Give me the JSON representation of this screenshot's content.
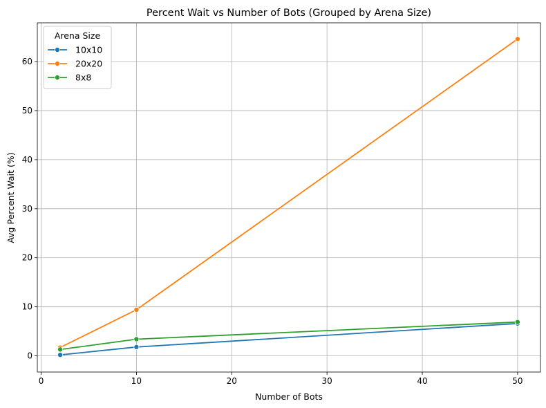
{
  "chart_data": {
    "type": "line",
    "title": "Percent Wait vs Number of Bots (Grouped by Arena Size)",
    "xlabel": "Number of Bots",
    "ylabel": "Avg Percent Wait (%)",
    "xlim": [
      -0.4,
      52.4
    ],
    "ylim": [
      -3.3,
      67.9
    ],
    "xticks": [
      0,
      10,
      20,
      30,
      40,
      50
    ],
    "yticks": [
      0,
      10,
      20,
      30,
      40,
      50,
      60
    ],
    "grid": true,
    "legend": {
      "title": "Arena Size",
      "position": "top-left"
    },
    "series": [
      {
        "name": "10x10",
        "color": "#1f77b4",
        "x": [
          2,
          10,
          50
        ],
        "y": [
          0.2,
          1.8,
          6.6
        ]
      },
      {
        "name": "20x20",
        "color": "#ff7f0e",
        "x": [
          2,
          10,
          50
        ],
        "y": [
          1.7,
          9.4,
          64.6
        ]
      },
      {
        "name": "8x8",
        "color": "#2ca02c",
        "x": [
          2,
          10,
          50
        ],
        "y": [
          1.3,
          3.4,
          6.9
        ]
      }
    ]
  }
}
